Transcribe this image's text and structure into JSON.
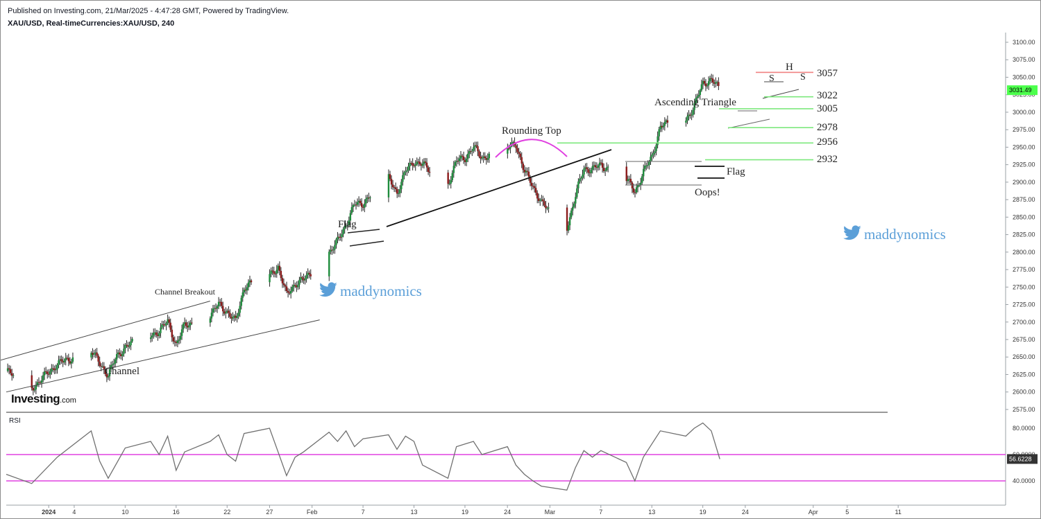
{
  "header": {
    "published": "Published on Investing.com, 21/Mar/2025 - 4:47:28 GMT, Powered by TradingView.",
    "symbol": "XAU/USD, Real-timeCurrencies:XAU/USD, 240"
  },
  "logo": {
    "main": "Investing",
    "suffix": ".com"
  },
  "watermark": {
    "text": "maddynomics"
  },
  "rsi_panel": {
    "label": "RSI"
  },
  "colors": {
    "up_candle": "#1e8c3c",
    "down_candle": "#8b1a1a",
    "channel": "#444444",
    "support_lines": "#7de87d",
    "resistance_line": "#f08080",
    "rounding_arc": "#e040e0",
    "rsi_line": "#707070",
    "rsi_bands": "#e040e0",
    "price_tag": "#4cff4c",
    "watermark": "#5b9fd8"
  },
  "chart_data": {
    "type": "candlestick",
    "title": "XAU/USD, Real-timeCurrencies:XAU/USD, 240",
    "price_axis": {
      "ylim": [
        2570,
        3110
      ],
      "ticks": [
        "3100.00",
        "3075.00",
        "3050.00",
        "3025.00",
        "3000.00",
        "2975.00",
        "2950.00",
        "2925.00",
        "2900.00",
        "2875.00",
        "2850.00",
        "2825.00",
        "2800.00",
        "2775.00",
        "2750.00",
        "2725.00",
        "2700.00",
        "2675.00",
        "2650.00",
        "2625.00",
        "2600.00",
        "2575.00"
      ],
      "last_price": "3031.49"
    },
    "time_axis": {
      "labels": [
        "2024",
        "4",
        "10",
        "16",
        "22",
        "27",
        "Feb",
        "7",
        "13",
        "19",
        "24",
        "Mar",
        "7",
        "13",
        "19",
        "24",
        "Apr",
        "5",
        "11"
      ]
    },
    "price_path": [
      {
        "d": "2024-12-27",
        "p": 2630
      },
      {
        "d": "2024-12-30",
        "p": 2605
      },
      {
        "d": "2025-01-02",
        "p": 2640
      },
      {
        "d": "2025-01-03",
        "p": 2645
      },
      {
        "d": "2025-01-06",
        "p": 2660
      },
      {
        "d": "2025-01-07",
        "p": 2640
      },
      {
        "d": "2025-01-08",
        "p": 2625
      },
      {
        "d": "2025-01-09",
        "p": 2650
      },
      {
        "d": "2025-01-10",
        "p": 2665
      },
      {
        "d": "2025-01-13",
        "p": 2680
      },
      {
        "d": "2025-01-14",
        "p": 2688
      },
      {
        "d": "2025-01-15",
        "p": 2700
      },
      {
        "d": "2025-01-16",
        "p": 2668
      },
      {
        "d": "2025-01-17",
        "p": 2695
      },
      {
        "d": "2025-01-20",
        "p": 2710
      },
      {
        "d": "2025-01-21",
        "p": 2725
      },
      {
        "d": "2025-01-22",
        "p": 2715
      },
      {
        "d": "2025-01-23",
        "p": 2700
      },
      {
        "d": "2025-01-24",
        "p": 2750
      },
      {
        "d": "2025-01-27",
        "p": 2765
      },
      {
        "d": "2025-01-28",
        "p": 2780
      },
      {
        "d": "2025-01-29",
        "p": 2738
      },
      {
        "d": "2025-01-30",
        "p": 2755
      },
      {
        "d": "2025-01-31",
        "p": 2760
      },
      {
        "d": "2025-02-03",
        "p": 2800
      },
      {
        "d": "2025-02-04",
        "p": 2815
      },
      {
        "d": "2025-02-05",
        "p": 2840
      },
      {
        "d": "2025-02-06",
        "p": 2868
      },
      {
        "d": "2025-02-07",
        "p": 2870
      },
      {
        "d": "2025-02-10",
        "p": 2905
      },
      {
        "d": "2025-02-11",
        "p": 2885
      },
      {
        "d": "2025-02-12",
        "p": 2915
      },
      {
        "d": "2025-02-13",
        "p": 2930
      },
      {
        "d": "2025-02-14",
        "p": 2925
      },
      {
        "d": "2025-02-17",
        "p": 2898
      },
      {
        "d": "2025-02-18",
        "p": 2930
      },
      {
        "d": "2025-02-19",
        "p": 2935
      },
      {
        "d": "2025-02-20",
        "p": 2950
      },
      {
        "d": "2025-02-21",
        "p": 2935
      },
      {
        "d": "2025-02-24",
        "p": 2948
      },
      {
        "d": "2025-02-25",
        "p": 2955
      },
      {
        "d": "2025-02-26",
        "p": 2915
      },
      {
        "d": "2025-02-27",
        "p": 2895
      },
      {
        "d": "2025-02-28",
        "p": 2870
      },
      {
        "d": "2025-03-03",
        "p": 2835
      },
      {
        "d": "2025-03-04",
        "p": 2880
      },
      {
        "d": "2025-03-05",
        "p": 2920
      },
      {
        "d": "2025-03-06",
        "p": 2918
      },
      {
        "d": "2025-03-07",
        "p": 2925
      },
      {
        "d": "2025-03-10",
        "p": 2905
      },
      {
        "d": "2025-03-11",
        "p": 2885
      },
      {
        "d": "2025-03-12",
        "p": 2915
      },
      {
        "d": "2025-03-13",
        "p": 2935
      },
      {
        "d": "2025-03-14",
        "p": 2980
      },
      {
        "d": "2025-03-17",
        "p": 2988
      },
      {
        "d": "2025-03-18",
        "p": 3010
      },
      {
        "d": "2025-03-19",
        "p": 3040
      },
      {
        "d": "2025-03-20",
        "p": 3048
      },
      {
        "d": "2025-03-21",
        "p": 3031
      }
    ],
    "rsi": {
      "levels": [
        "80.0000",
        "60.0000",
        "40.0000"
      ],
      "current": "56.6228",
      "bands": [
        60,
        40
      ],
      "ylim": [
        32,
        88
      ],
      "path": [
        {
          "d": "2024-12-27",
          "v": 45
        },
        {
          "d": "2024-12-30",
          "v": 38
        },
        {
          "d": "2025-01-02",
          "v": 58
        },
        {
          "d": "2025-01-06",
          "v": 78
        },
        {
          "d": "2025-01-07",
          "v": 55
        },
        {
          "d": "2025-01-08",
          "v": 42
        },
        {
          "d": "2025-01-10",
          "v": 65
        },
        {
          "d": "2025-01-13",
          "v": 70
        },
        {
          "d": "2025-01-14",
          "v": 60
        },
        {
          "d": "2025-01-15",
          "v": 74
        },
        {
          "d": "2025-01-16",
          "v": 48
        },
        {
          "d": "2025-01-17",
          "v": 62
        },
        {
          "d": "2025-01-20",
          "v": 70
        },
        {
          "d": "2025-01-21",
          "v": 75
        },
        {
          "d": "2025-01-22",
          "v": 60
        },
        {
          "d": "2025-01-23",
          "v": 55
        },
        {
          "d": "2025-01-24",
          "v": 76
        },
        {
          "d": "2025-01-27",
          "v": 80
        },
        {
          "d": "2025-01-28",
          "v": 62
        },
        {
          "d": "2025-01-29",
          "v": 44
        },
        {
          "d": "2025-01-30",
          "v": 58
        },
        {
          "d": "2025-01-31",
          "v": 62
        },
        {
          "d": "2025-02-03",
          "v": 77
        },
        {
          "d": "2025-02-04",
          "v": 70
        },
        {
          "d": "2025-02-05",
          "v": 78
        },
        {
          "d": "2025-02-06",
          "v": 66
        },
        {
          "d": "2025-02-07",
          "v": 72
        },
        {
          "d": "2025-02-10",
          "v": 75
        },
        {
          "d": "2025-02-11",
          "v": 64
        },
        {
          "d": "2025-02-12",
          "v": 74
        },
        {
          "d": "2025-02-13",
          "v": 70
        },
        {
          "d": "2025-02-14",
          "v": 52
        },
        {
          "d": "2025-02-17",
          "v": 42
        },
        {
          "d": "2025-02-18",
          "v": 66
        },
        {
          "d": "2025-02-19",
          "v": 68
        },
        {
          "d": "2025-02-20",
          "v": 70
        },
        {
          "d": "2025-02-21",
          "v": 60
        },
        {
          "d": "2025-02-24",
          "v": 66
        },
        {
          "d": "2025-02-25",
          "v": 52
        },
        {
          "d": "2025-02-26",
          "v": 45
        },
        {
          "d": "2025-02-27",
          "v": 40
        },
        {
          "d": "2025-02-28",
          "v": 36
        },
        {
          "d": "2025-03-03",
          "v": 33
        },
        {
          "d": "2025-03-04",
          "v": 50
        },
        {
          "d": "2025-03-05",
          "v": 63
        },
        {
          "d": "2025-03-06",
          "v": 58
        },
        {
          "d": "2025-03-07",
          "v": 63
        },
        {
          "d": "2025-03-10",
          "v": 54
        },
        {
          "d": "2025-03-11",
          "v": 40
        },
        {
          "d": "2025-03-12",
          "v": 58
        },
        {
          "d": "2025-03-13",
          "v": 68
        },
        {
          "d": "2025-03-14",
          "v": 78
        },
        {
          "d": "2025-03-17",
          "v": 74
        },
        {
          "d": "2025-03-18",
          "v": 80
        },
        {
          "d": "2025-03-19",
          "v": 84
        },
        {
          "d": "2025-03-20",
          "v": 78
        },
        {
          "d": "2025-03-21",
          "v": 56.6
        }
      ]
    },
    "annotations": [
      {
        "type": "channel",
        "label": "Channel",
        "from": "2024-12-27",
        "to": "2025-01-28",
        "lower": [
          2600,
          2715
        ],
        "upper": [
          2645,
          2730
        ]
      },
      {
        "type": "text",
        "label": "Channel Breakout",
        "d": "2025-01-17",
        "p": 2740
      },
      {
        "type": "flag",
        "label": "Flag",
        "d": "2025-02-03",
        "p": 2835
      },
      {
        "type": "trendline",
        "from": {
          "d": "2025-02-06",
          "p": 2835
        },
        "to": {
          "d": "2025-02-28",
          "p": 2945
        }
      },
      {
        "type": "arc",
        "label": "Rounding Top",
        "from": "2025-02-19",
        "to": "2025-02-26",
        "peak": 2962
      },
      {
        "type": "box",
        "from": "2025-03-05",
        "to": "2025-03-12",
        "top": 2928,
        "bottom": 2895
      },
      {
        "type": "text",
        "label": "Flag",
        "d": "2025-03-13",
        "p": 2915
      },
      {
        "type": "text",
        "label": "Oops!",
        "d": "2025-03-11",
        "p": 2885
      },
      {
        "type": "text",
        "label": "Ascending Triangle",
        "d": "2025-03-14",
        "p": 3012
      },
      {
        "type": "text",
        "label": "H",
        "d": "2025-03-20",
        "p": 3067
      },
      {
        "type": "text",
        "label": "S",
        "d": "2025-03-19",
        "p": 3048
      },
      {
        "type": "text",
        "label": "S",
        "d": "2025-03-21",
        "p": 3050
      }
    ],
    "levels": [
      {
        "price": 3057,
        "label": "3057",
        "color": "#f08080"
      },
      {
        "price": 3022,
        "label": "3022",
        "color": "#7de87d"
      },
      {
        "price": 3005,
        "label": "3005",
        "color": "#7de87d"
      },
      {
        "price": 2978,
        "label": "2978",
        "color": "#7de87d"
      },
      {
        "price": 2956,
        "label": "2956",
        "color": "#7de87d"
      },
      {
        "price": 2932,
        "label": "2932",
        "color": "#7de87d"
      }
    ]
  }
}
